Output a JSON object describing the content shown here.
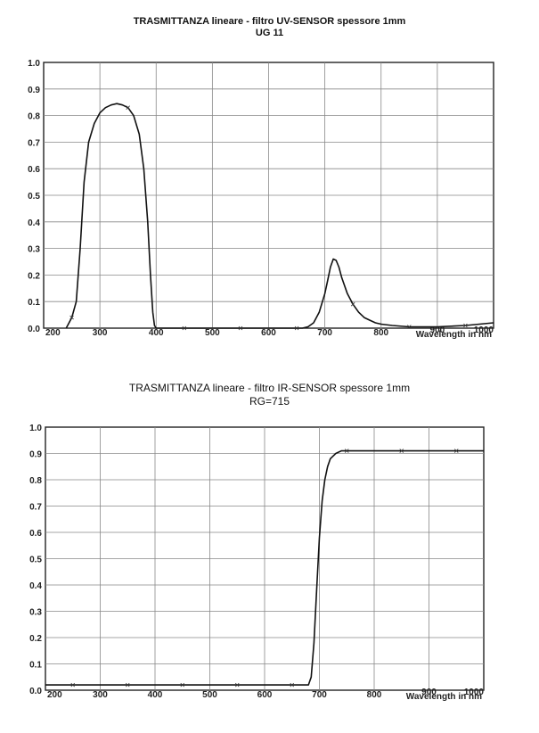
{
  "chart_data": [
    {
      "type": "line",
      "title": "TRASMITTANZA lineare - filtro UV-SENSOR spessore 1mm",
      "subtitle": "UG 11",
      "xlabel": "Wavelength in nm",
      "ylabel": "",
      "xlim": [
        200,
        1000
      ],
      "ylim": [
        0,
        1.0
      ],
      "x_ticks": [
        "200",
        "300",
        "400",
        "500",
        "600",
        "700",
        "800",
        "900",
        "1000"
      ],
      "y_ticks": [
        "0.0",
        "0.1",
        "0.2",
        "0.3",
        "0.4",
        "0.5",
        "0.6",
        "0.7",
        "0.8",
        "0.9",
        "1.0"
      ],
      "grid": true,
      "series": [
        {
          "x": [
            240,
            250,
            258,
            265,
            272,
            280,
            290,
            300,
            310,
            320,
            330,
            340,
            350,
            360,
            370,
            378,
            385,
            390,
            394,
            397,
            400,
            450,
            500,
            550,
            600,
            640,
            660,
            670,
            680,
            690,
            700,
            705,
            710,
            715,
            720,
            725,
            730,
            740,
            750,
            760,
            770,
            780,
            790,
            800,
            820,
            850,
            880,
            900,
            950,
            1000
          ],
          "y": [
            0.0,
            0.04,
            0.1,
            0.3,
            0.55,
            0.7,
            0.77,
            0.81,
            0.83,
            0.84,
            0.845,
            0.84,
            0.83,
            0.8,
            0.73,
            0.6,
            0.4,
            0.2,
            0.06,
            0.01,
            0.0,
            0.0,
            0.0,
            0.0,
            0.0,
            0.0,
            0.0,
            0.005,
            0.02,
            0.06,
            0.13,
            0.18,
            0.23,
            0.26,
            0.255,
            0.23,
            0.19,
            0.13,
            0.09,
            0.06,
            0.04,
            0.03,
            0.02,
            0.015,
            0.01,
            0.005,
            0.005,
            0.005,
            0.01,
            0.02
          ]
        }
      ]
    },
    {
      "type": "line",
      "title": "TRASMITTANZA lineare - filtro IR-SENSOR spessore 1mm",
      "subtitle": "RG=715",
      "xlabel": "Wavelength in nm",
      "ylabel": "",
      "xlim": [
        200,
        1000
      ],
      "ylim": [
        0,
        1.0
      ],
      "x_ticks": [
        "200",
        "300",
        "400",
        "500",
        "600",
        "700",
        "800",
        "900",
        "1000"
      ],
      "y_ticks": [
        "0.0",
        "0.1",
        "0.2",
        "0.3",
        "0.4",
        "0.5",
        "0.6",
        "0.7",
        "0.8",
        "0.9",
        "1.0"
      ],
      "grid": true,
      "series": [
        {
          "x": [
            200,
            300,
            400,
            500,
            600,
            680,
            685,
            690,
            695,
            700,
            705,
            710,
            715,
            720,
            730,
            740,
            750,
            800,
            900,
            1000
          ],
          "y": [
            0.02,
            0.02,
            0.02,
            0.02,
            0.02,
            0.02,
            0.05,
            0.18,
            0.38,
            0.58,
            0.72,
            0.8,
            0.85,
            0.88,
            0.9,
            0.91,
            0.91,
            0.91,
            0.91,
            0.91
          ]
        }
      ]
    }
  ]
}
